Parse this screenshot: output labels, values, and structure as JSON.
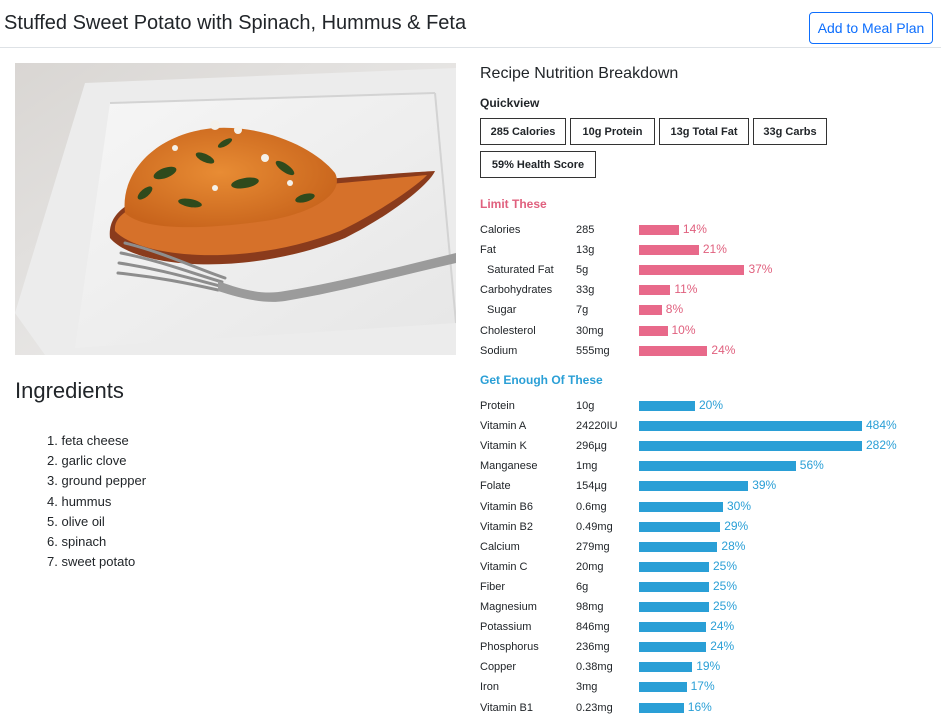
{
  "header": {
    "title": "Stuffed Sweet Potato with Spinach, Hummus & Feta",
    "add_button_label": "Add to Meal Plan"
  },
  "ingredients": {
    "title": "Ingredients",
    "items": [
      "feta cheese",
      "garlic clove",
      "ground pepper",
      "hummus",
      "olive oil",
      "spinach",
      "sweet potato"
    ]
  },
  "nutrition": {
    "title": "Recipe Nutrition Breakdown",
    "quickview_label": "Quickview",
    "quickview": [
      "285 Calories",
      "10g Protein",
      "13g Total Fat",
      "33g Carbs",
      "59% Health Score"
    ],
    "limit_label": "Limit These",
    "limit": [
      {
        "name": "Calories",
        "amount": "285",
        "percent": 14,
        "percent_label": "14%",
        "sub": false
      },
      {
        "name": "Fat",
        "amount": "13g",
        "percent": 21,
        "percent_label": "21%",
        "sub": false
      },
      {
        "name": "Saturated Fat",
        "amount": "5g",
        "percent": 37,
        "percent_label": "37%",
        "sub": true
      },
      {
        "name": "Carbohydrates",
        "amount": "33g",
        "percent": 11,
        "percent_label": "11%",
        "sub": false
      },
      {
        "name": "Sugar",
        "amount": "7g",
        "percent": 8,
        "percent_label": "8%",
        "sub": true
      },
      {
        "name": "Cholesterol",
        "amount": "30mg",
        "percent": 10,
        "percent_label": "10%",
        "sub": false
      },
      {
        "name": "Sodium",
        "amount": "555mg",
        "percent": 24,
        "percent_label": "24%",
        "sub": false
      }
    ],
    "good_label": "Get Enough Of These",
    "good": [
      {
        "name": "Protein",
        "amount": "10g",
        "percent": 20,
        "percent_label": "20%"
      },
      {
        "name": "Vitamin A",
        "amount": "24220IU",
        "percent": 484,
        "percent_label": "484%"
      },
      {
        "name": "Vitamin K",
        "amount": "296µg",
        "percent": 282,
        "percent_label": "282%"
      },
      {
        "name": "Manganese",
        "amount": "1mg",
        "percent": 56,
        "percent_label": "56%"
      },
      {
        "name": "Folate",
        "amount": "154µg",
        "percent": 39,
        "percent_label": "39%"
      },
      {
        "name": "Vitamin B6",
        "amount": "0.6mg",
        "percent": 30,
        "percent_label": "30%"
      },
      {
        "name": "Vitamin B2",
        "amount": "0.49mg",
        "percent": 29,
        "percent_label": "29%"
      },
      {
        "name": "Calcium",
        "amount": "279mg",
        "percent": 28,
        "percent_label": "28%"
      },
      {
        "name": "Vitamin C",
        "amount": "20mg",
        "percent": 25,
        "percent_label": "25%"
      },
      {
        "name": "Fiber",
        "amount": "6g",
        "percent": 25,
        "percent_label": "25%"
      },
      {
        "name": "Magnesium",
        "amount": "98mg",
        "percent": 25,
        "percent_label": "25%"
      },
      {
        "name": "Potassium",
        "amount": "846mg",
        "percent": 24,
        "percent_label": "24%"
      },
      {
        "name": "Phosphorus",
        "amount": "236mg",
        "percent": 24,
        "percent_label": "24%"
      },
      {
        "name": "Copper",
        "amount": "0.38mg",
        "percent": 19,
        "percent_label": "19%"
      },
      {
        "name": "Iron",
        "amount": "3mg",
        "percent": 17,
        "percent_label": "17%"
      },
      {
        "name": "Vitamin B1",
        "amount": "0.23mg",
        "percent": 16,
        "percent_label": "16%"
      }
    ]
  },
  "colors": {
    "primary": "#0d6efd",
    "limit_bar": "#e8698a",
    "limit_text": "#e0607e",
    "good_bar": "#2a9fd6"
  },
  "photo": {
    "icon": "stuffed-sweet-potato-photo"
  }
}
